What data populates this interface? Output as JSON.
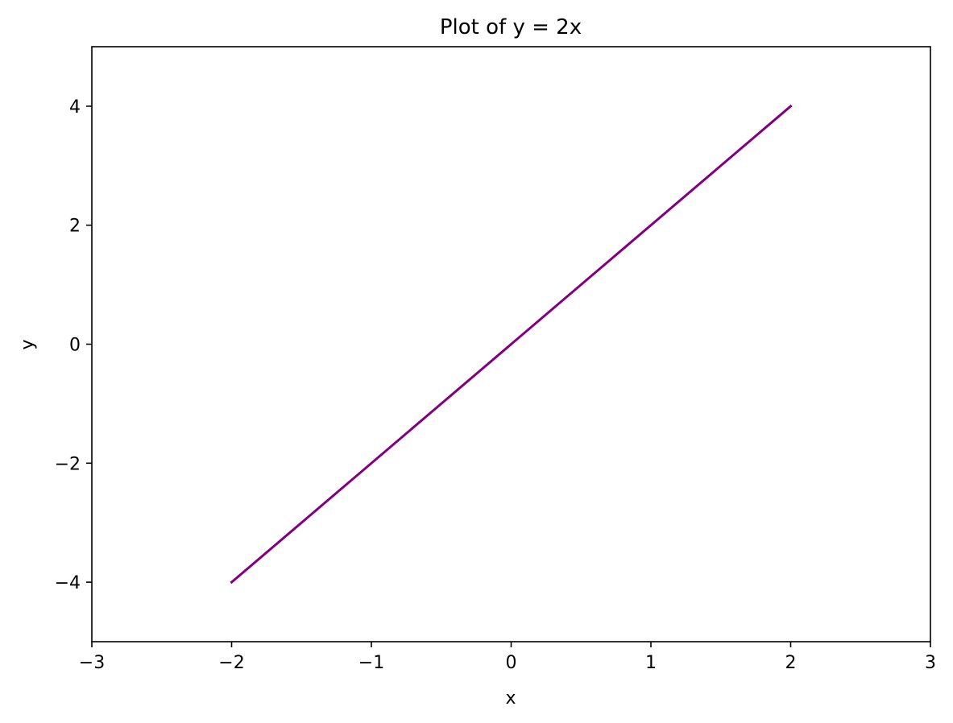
{
  "chart_data": {
    "type": "line",
    "title": "Plot of y = 2x",
    "xlabel": "x",
    "ylabel": "y",
    "xlim": [
      -3,
      3
    ],
    "ylim": [
      -5,
      5
    ],
    "xticks": [
      {
        "value": -3,
        "label": "−3"
      },
      {
        "value": -2,
        "label": "−2"
      },
      {
        "value": -1,
        "label": "−1"
      },
      {
        "value": 0,
        "label": "0"
      },
      {
        "value": 1,
        "label": "1"
      },
      {
        "value": 2,
        "label": "2"
      },
      {
        "value": 3,
        "label": "3"
      }
    ],
    "yticks": [
      {
        "value": -4,
        "label": "−4"
      },
      {
        "value": -2,
        "label": "−2"
      },
      {
        "value": 0,
        "label": "0"
      },
      {
        "value": 2,
        "label": "2"
      },
      {
        "value": 4,
        "label": "4"
      }
    ],
    "grid": false,
    "series": [
      {
        "color": "#800080",
        "x": [
          -2,
          2
        ],
        "y": [
          -4,
          4
        ]
      }
    ]
  }
}
